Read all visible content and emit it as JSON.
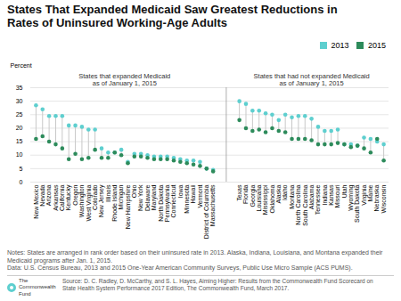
{
  "chart_data": {
    "type": "dumbbell",
    "title": "States That Expanded Medicaid Saw Greatest Reductions in\nRates of Uninsured Working-Age Adults",
    "ylabel": "Percent",
    "categories": [
      "New Mexico",
      "Nevada",
      "Arizona",
      "Arkansas",
      "California",
      "Kentucky",
      "Oregon",
      "Washington",
      "West Virginia",
      "Colorado",
      "New Jersey",
      "Illinois",
      "Rhode Island",
      "Michigan",
      "New Hampshire",
      "Ohio",
      "New York",
      "Delaware",
      "Maryland",
      "North Dakota",
      "Pennsylvania",
      "Connecticut",
      "Iowa",
      "Minnesota",
      "Hawaii",
      "Vermont",
      "District of Columbia",
      "Massachusetts",
      null,
      null,
      null,
      "Texas",
      "Florida",
      "Georgia",
      "Louisiana",
      "Mississippi",
      "Oklahoma",
      "Alaska",
      "Idaho",
      "Montana",
      "North Carolina",
      "South Carolina",
      "Alabama",
      "Tennessee",
      "Indiana",
      "Kansas",
      "Missouri",
      "Utah",
      "Wyoming",
      "South Dakota",
      "Virginia",
      "Maine",
      "Nebraska",
      "Wisconsin"
    ],
    "series": [
      {
        "name": "2013",
        "color": "#5ECFCF",
        "values": [
          28.5,
          27.0,
          24.5,
          24.5,
          24.5,
          21.0,
          21.0,
          20.5,
          19.5,
          19.5,
          12.5,
          11.0,
          11.0,
          12.0,
          7.5,
          10.5,
          10.5,
          10.0,
          9.5,
          9.5,
          9.5,
          9.0,
          8.5,
          8.0,
          8.0,
          7.5,
          5.0,
          4.5,
          null,
          null,
          null,
          30.0,
          29.0,
          26.5,
          26.5,
          25.5,
          25.0,
          23.0,
          25.0,
          24.0,
          24.5,
          24.5,
          23.5,
          20.5,
          19.0,
          19.0,
          19.5,
          14.0,
          14.0,
          13.5,
          16.5,
          16.0,
          15.0,
          14.0
        ]
      },
      {
        "name": "2015",
        "color": "#2D8B5B",
        "values": [
          16.0,
          17.0,
          15.0,
          14.0,
          12.5,
          8.5,
          10.5,
          8.5,
          9.0,
          12.0,
          9.0,
          9.0,
          11.0,
          10.0,
          7.0,
          9.5,
          9.5,
          9.0,
          8.5,
          8.5,
          8.5,
          8.0,
          7.5,
          7.0,
          6.5,
          6.0,
          5.0,
          4.0,
          null,
          null,
          null,
          23.0,
          20.0,
          19.0,
          19.5,
          18.5,
          20.0,
          19.0,
          18.5,
          16.0,
          16.0,
          16.0,
          15.5,
          14.0,
          14.0,
          14.0,
          14.5,
          14.0,
          13.0,
          13.5,
          12.5,
          11.0,
          16.0,
          8.0
        ]
      }
    ],
    "annotations": [
      "States that expanded Medicaid\nas of January 1, 2015",
      "States that had not expanded Medicaid\nas of January 1, 2015"
    ],
    "notes": [
      "Notes: States are arranged in rank order based on their uninsured rate in 2013. Alaska, Indiana, Louisiana, and Montana expanded their Medicaid programs after Jan. 1, 2015.",
      "Data: U.S. Census Bureau, 2013 and 2015 One-Year American Community Surveys, Public Use Micro Sample (ACS PUMS)."
    ],
    "source": "Source: D. C. Radley, D. McCarthy, and S. L. Hayes, Aiming Higher: Results from the Commonwealth Fund Scorecard on\nState Health System Performance 2017 Edition, The Commonwealth Fund, March 2017.",
    "logo_text": "The\nCommonwealth\nFund",
    "ylim": [
      0,
      35
    ],
    "yticks": [
      0,
      5,
      10,
      15,
      20,
      25,
      30,
      35
    ],
    "grid": true,
    "legend": "top right"
  }
}
